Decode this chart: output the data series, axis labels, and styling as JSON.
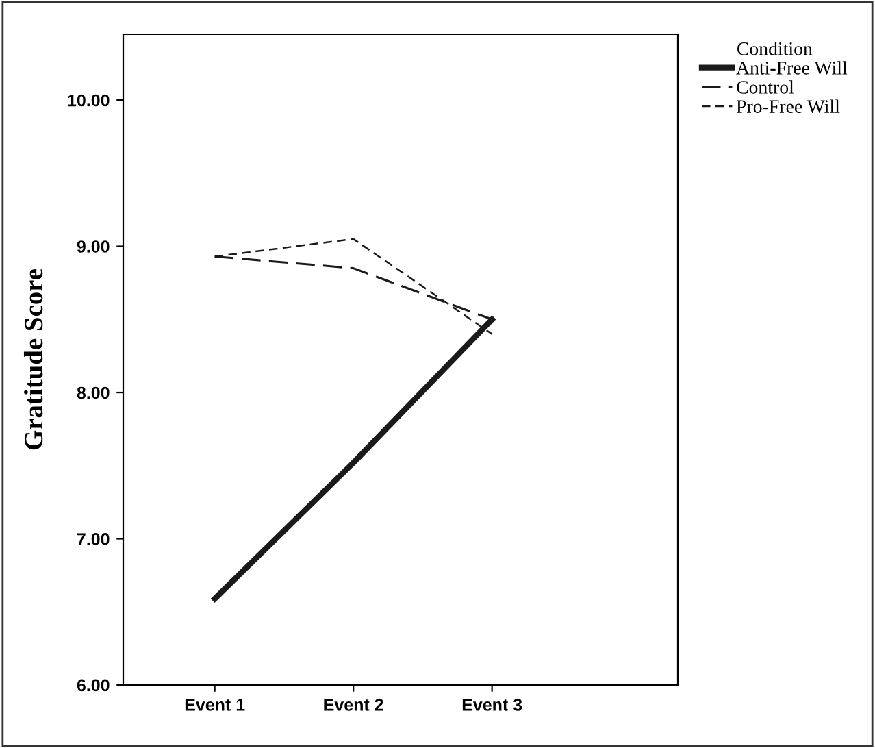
{
  "chart_data": {
    "type": "line",
    "ylabel": "Gratitude Score",
    "legend_title": "Condition",
    "legend": "top right",
    "grid": false,
    "marker": "none",
    "categories": [
      "Event 1",
      "Event 2",
      "Event 3"
    ],
    "ylim": [
      6,
      10.45
    ],
    "yticks": [
      {
        "value": 6,
        "label": "6.00"
      },
      {
        "value": 7,
        "label": "7.00"
      },
      {
        "value": 8,
        "label": "8.00"
      },
      {
        "value": 9,
        "label": "9.00"
      },
      {
        "value": 10,
        "label": "10.00"
      }
    ],
    "series": [
      {
        "name": "Anti-Free Will",
        "color": "#1a1a1a",
        "line_style": "solid",
        "values": [
          6.59,
          7.52,
          8.5
        ]
      },
      {
        "name": "Control",
        "color": "#1a1a1a",
        "line_style": "dashed",
        "values": [
          8.93,
          8.85,
          8.5
        ]
      },
      {
        "name": "Pro-Free Will",
        "color": "#1a1a1a",
        "line_style": "dotted",
        "values": [
          8.93,
          9.05,
          8.4
        ]
      }
    ]
  }
}
